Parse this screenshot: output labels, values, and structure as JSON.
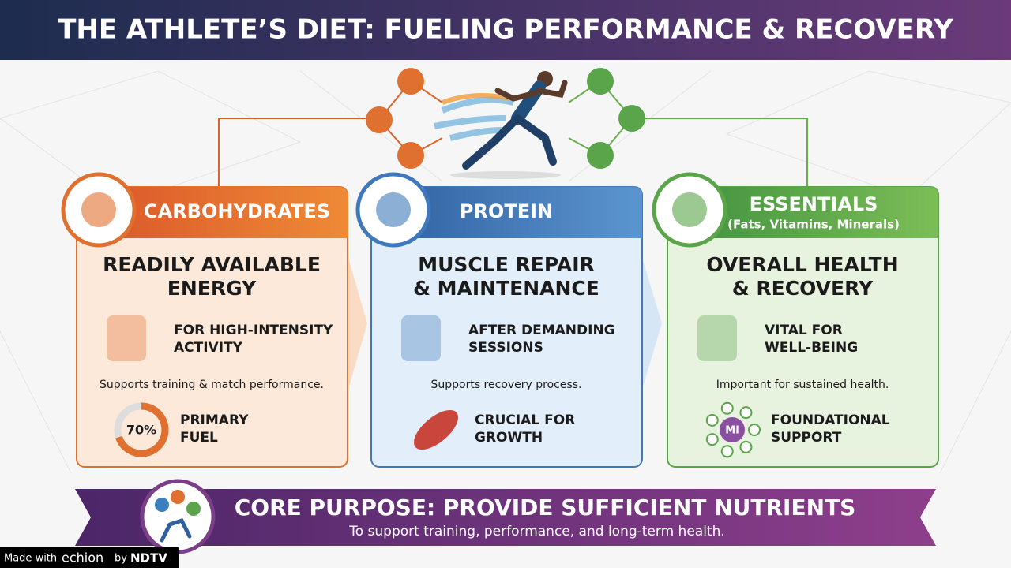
{
  "header": {
    "title": "THE ATHLETE’S DIET: FUELING PERFORMANCE & RECOVERY"
  },
  "cards": [
    {
      "header": "CARBOHYDRATES",
      "headline": [
        "READILY AVAILABLE",
        "ENERGY"
      ],
      "point1": [
        "FOR HIGH-INTENSITY",
        "ACTIVITY"
      ],
      "note": "Supports training & match performance.",
      "point2": [
        "PRIMARY",
        "FUEL"
      ],
      "gauge": {
        "value": 70,
        "label": "70%"
      }
    },
    {
      "header": "PROTEIN",
      "headline": [
        "MUSCLE REPAIR",
        "& MAINTENANCE"
      ],
      "point1": [
        "AFTER DEMANDING",
        "SESSIONS"
      ],
      "note": "Supports recovery process.",
      "point2": [
        "CRUCIAL FOR",
        "GROWTH"
      ]
    },
    {
      "header": "ESSENTIALS",
      "subheader": "(Fats, Vitamins, Minerals)",
      "headline": [
        "OVERALL HEALTH",
        "& RECOVERY"
      ],
      "point1": [
        "VITAL FOR",
        "WELL-BEING"
      ],
      "note": "Important for sustained health.",
      "point2": [
        "FOUNDATIONAL",
        "SUPPORT"
      ],
      "icon_label": "Mi"
    }
  ],
  "banner": {
    "title": "CORE PURPOSE: PROVIDE SUFFICIENT NUTRIENTS",
    "subtitle": "To support training, performance, and long-term health."
  },
  "footer": {
    "made_with": "Made with",
    "brand": "echion",
    "by": "by",
    "partner": "NDTV"
  }
}
